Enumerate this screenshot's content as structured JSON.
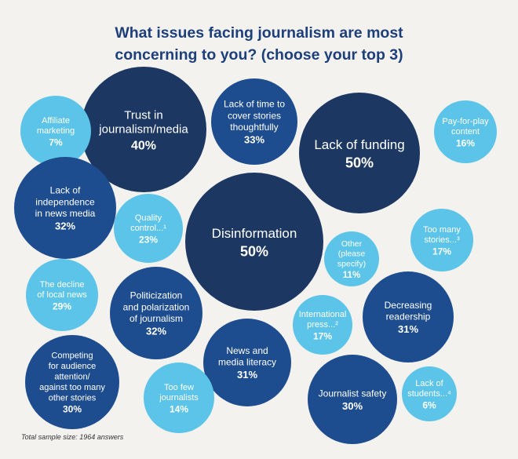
{
  "title_lines": [
    "What issues facing journalism are most",
    "concerning to you? (choose your top 3)"
  ],
  "footnote": "Total sample size: 1964 answers",
  "colors": {
    "navy": "#1c3862",
    "blue": "#1e4d8f",
    "light": "#5bc4e8",
    "title": "#1d3f7a"
  },
  "chart_data": {
    "type": "bubble",
    "title": "What issues facing journalism are most concerning to you? (choose your top 3)",
    "unit": "%",
    "items": [
      {
        "label": [
          "Trust in",
          "journalism/media"
        ],
        "value": 40,
        "tone": "navy"
      },
      {
        "label": [
          "Lack of time to",
          "cover stories",
          "thoughtfully"
        ],
        "value": 33,
        "tone": "blue"
      },
      {
        "label": [
          "Lack of funding"
        ],
        "value": 50,
        "tone": "navy"
      },
      {
        "label": [
          "Pay-for-play",
          "content"
        ],
        "value": 16,
        "tone": "light"
      },
      {
        "label": [
          "Affiliate",
          "marketing"
        ],
        "value": 7,
        "tone": "light"
      },
      {
        "label": [
          "Lack of",
          "independence",
          "in news media"
        ],
        "value": 32,
        "tone": "blue"
      },
      {
        "label": [
          "Quality",
          "control...¹"
        ],
        "value": 23,
        "tone": "light"
      },
      {
        "label": [
          "Disinformation"
        ],
        "value": 50,
        "tone": "navy"
      },
      {
        "label": [
          "Other",
          "(please",
          "specify)"
        ],
        "value": 11,
        "tone": "light"
      },
      {
        "label": [
          "Too many",
          "stories...³"
        ],
        "value": 17,
        "tone": "light"
      },
      {
        "label": [
          "The decline",
          "of local news"
        ],
        "value": 29,
        "tone": "light"
      },
      {
        "label": [
          "Politicization",
          "and polarization",
          "of journalism"
        ],
        "value": 32,
        "tone": "blue"
      },
      {
        "label": [
          "International",
          "press...²"
        ],
        "value": 17,
        "tone": "light"
      },
      {
        "label": [
          "Decreasing",
          "readership"
        ],
        "value": 31,
        "tone": "blue"
      },
      {
        "label": [
          "Competing",
          "for audience",
          "attention/",
          "against too many",
          "other stories"
        ],
        "value": 30,
        "tone": "blue"
      },
      {
        "label": [
          "News and",
          "media literacy"
        ],
        "value": 31,
        "tone": "blue"
      },
      {
        "label": [
          "Too few",
          "journalists"
        ],
        "value": 14,
        "tone": "light"
      },
      {
        "label": [
          "Journalist safety"
        ],
        "value": 30,
        "tone": "blue"
      },
      {
        "label": [
          "Lack of",
          "students...⁴"
        ],
        "value": 6,
        "tone": "light"
      }
    ]
  }
}
